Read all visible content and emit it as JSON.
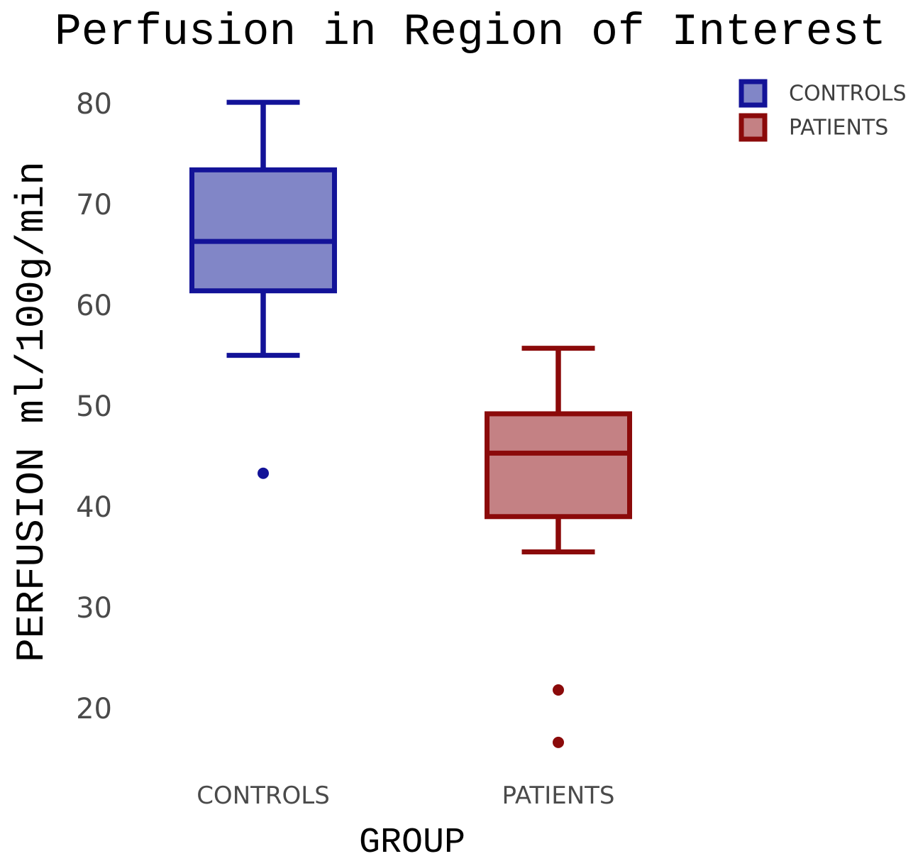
{
  "page": {
    "background": "#ffffff"
  },
  "chart_data": {
    "type": "box",
    "title": "Perfusion in Region of Interest",
    "xlabel": "GROUP",
    "ylabel": "PERFUSION ml/100g/min",
    "categories": [
      "CONTROLS",
      "PATIENTS"
    ],
    "yticks": [
      80,
      70,
      60,
      50,
      40,
      30,
      20
    ],
    "ylim": [
      14,
      84
    ],
    "grid": false,
    "axis_spines": false,
    "legend": {
      "position": "upper-right",
      "entries": [
        "CONTROLS",
        "PATIENTS"
      ]
    },
    "series": [
      {
        "name": "CONTROLS",
        "whisker_low": 55.1,
        "q1": 61.5,
        "median": 66.4,
        "q3": 73.5,
        "whisker_high": 80.2,
        "outliers": [
          43.4
        ],
        "fill": "#8186c7",
        "stroke": "#131398"
      },
      {
        "name": "PATIENTS",
        "whisker_low": 35.6,
        "q1": 39.1,
        "median": 45.4,
        "q3": 49.3,
        "whisker_high": 55.8,
        "outliers": [
          21.9,
          16.7
        ],
        "fill": "#c48184",
        "stroke": "#8b0a0a"
      }
    ],
    "text_colors": {
      "title": "#000000",
      "axis_labels": "#000000",
      "tick_labels": "#4a4a4a",
      "legend_labels": "#3f3f3f"
    }
  }
}
